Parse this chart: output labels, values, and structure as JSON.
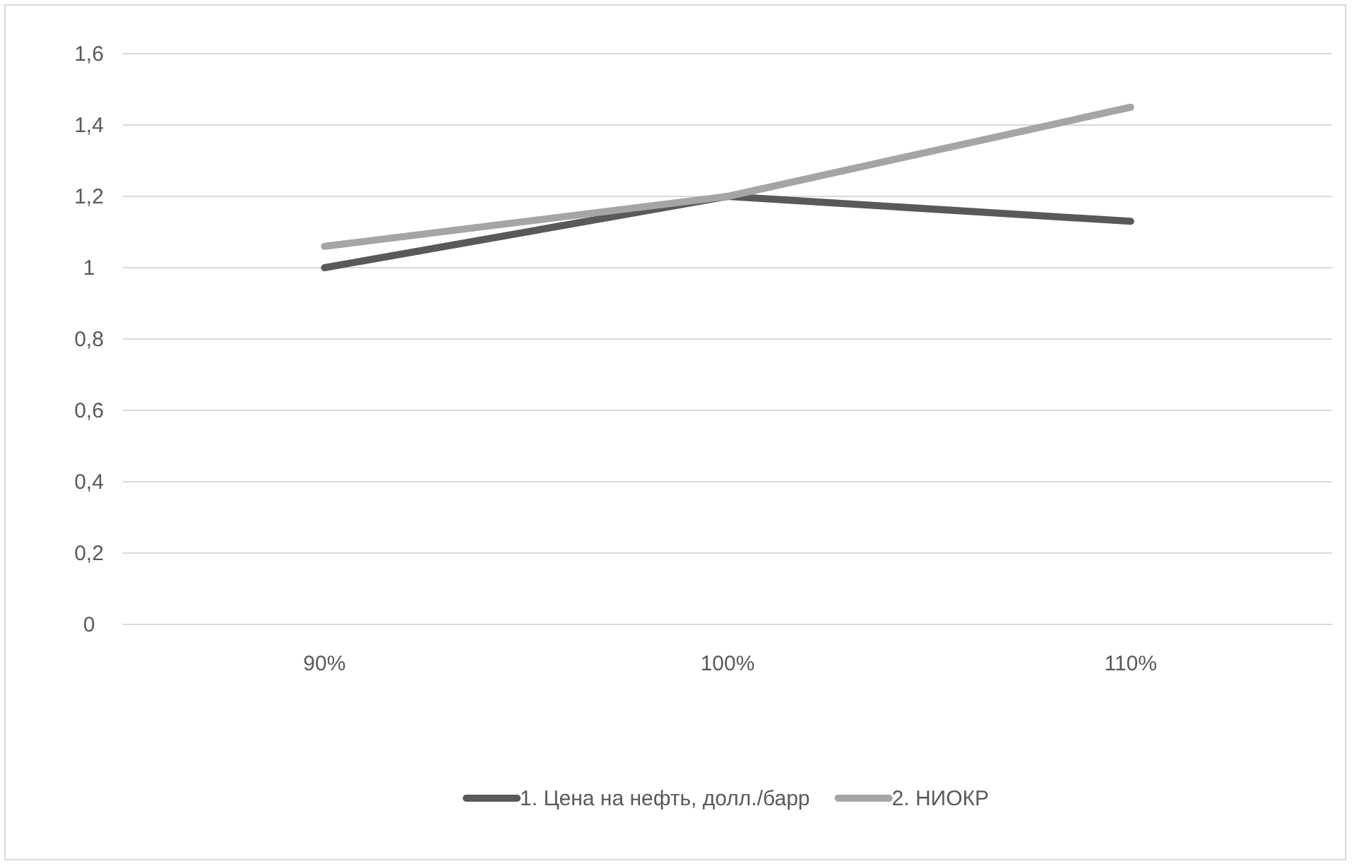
{
  "chart_data": {
    "type": "line",
    "categories": [
      "90%",
      "100%",
      "110%"
    ],
    "series": [
      {
        "name": "1. Цена на нефть, долл./барр",
        "color": "#595959",
        "values": [
          1.0,
          1.2,
          1.13
        ]
      },
      {
        "name": "2. НИОКР",
        "color": "#a5a5a5",
        "values": [
          1.06,
          1.2,
          1.45
        ]
      }
    ],
    "ylim": [
      0,
      1.6
    ],
    "yticks": [
      {
        "value": 0,
        "label": "0"
      },
      {
        "value": 0.2,
        "label": "0,2"
      },
      {
        "value": 0.4,
        "label": "0,4"
      },
      {
        "value": 0.6,
        "label": "0,6"
      },
      {
        "value": 0.8,
        "label": "0,8"
      },
      {
        "value": 1,
        "label": "1"
      },
      {
        "value": 1.2,
        "label": "1,2"
      },
      {
        "value": 1.4,
        "label": "1,4"
      },
      {
        "value": 1.6,
        "label": "1,6"
      }
    ],
    "grid": "y",
    "legend": "bottom",
    "marker": "none",
    "line_style": "solid"
  }
}
